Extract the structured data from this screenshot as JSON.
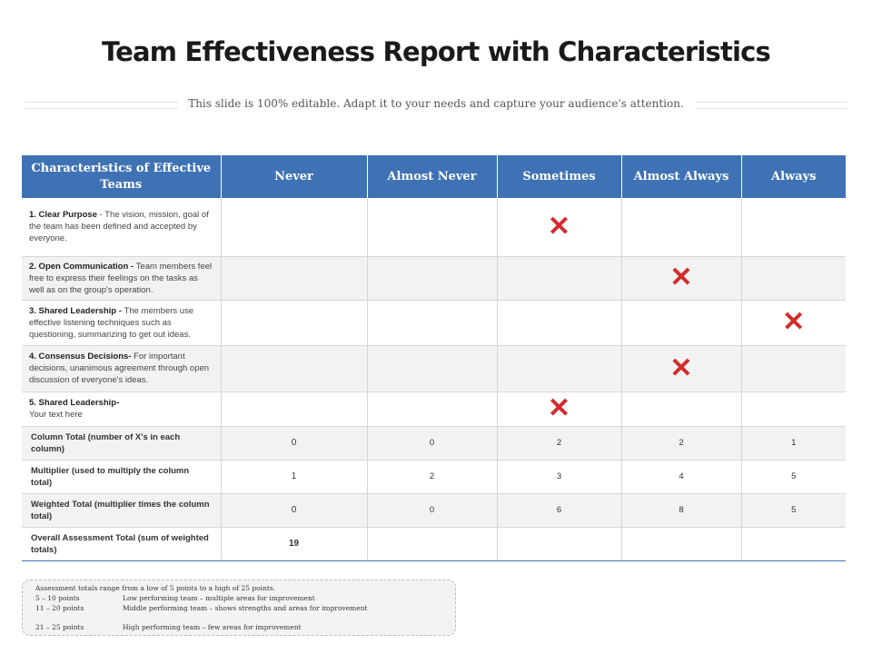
{
  "title": "Team Effectiveness Report with Characteristics",
  "subtitle": "This slide is 100% editable. Adapt it to your needs and capture your audience's attention.",
  "table": {
    "headers": [
      "Characteristics of Effective Teams",
      "Never",
      "Almost Never",
      "Sometimes",
      "Almost Always",
      "Always"
    ],
    "rows": [
      {
        "label": "1. Clear Purpose",
        "desc": " - The vision, mission, goal of the team has been defined and accepted by everyone.",
        "mark_col": 3
      },
      {
        "label": "2. Open Communication - ",
        "desc": "Team members feel free to express their feelings on the tasks as well as on the group's operation.",
        "mark_col": 4
      },
      {
        "label": "3. Shared Leadership - ",
        "desc": "The members use effective listening techniques such as questioning, summarizing to get out ideas.",
        "mark_col": 5
      },
      {
        "label": "4. Consensus Decisions-",
        "desc": " For important decisions, unanimous agreement through open discussion of everyone's ideas.",
        "mark_col": 4
      },
      {
        "label": "5. Shared Leadership-",
        "desc": "Your text here",
        "mark_col": 3
      }
    ],
    "mark_symbol": "✕",
    "column_total": {
      "label": "Column Total (number of X's in each column)",
      "values": [
        "0",
        "0",
        "2",
        "2",
        "1"
      ]
    },
    "multiplier": {
      "label": "Multiplier (used to multiply the column total)",
      "values": [
        "1",
        "2",
        "3",
        "4",
        "5"
      ]
    },
    "weighted_total": {
      "label": "Weighted Total (multiplier times the column total)",
      "values": [
        "0",
        "0",
        "6",
        "8",
        "5"
      ]
    },
    "overall": {
      "label": "Overall Assessment Total (sum of weighted totals)",
      "value": "19"
    }
  },
  "note": {
    "intro": "Assessment totals range from a low of 5 points to a high of 25 points.",
    "items": [
      {
        "range": "5 – 10 points",
        "text": "Low performing team – multiple areas for improvement"
      },
      {
        "range": "11 – 20 points",
        "text": "Middle performing team – shows strengths and areas for improvement"
      },
      {
        "range": "21 – 25 points",
        "text": "High performing team – few areas for improvement"
      }
    ]
  },
  "colors": {
    "header_bg": "#3f72b4",
    "mark": "#d32b2b",
    "alt_row": "#f2f2f2"
  }
}
